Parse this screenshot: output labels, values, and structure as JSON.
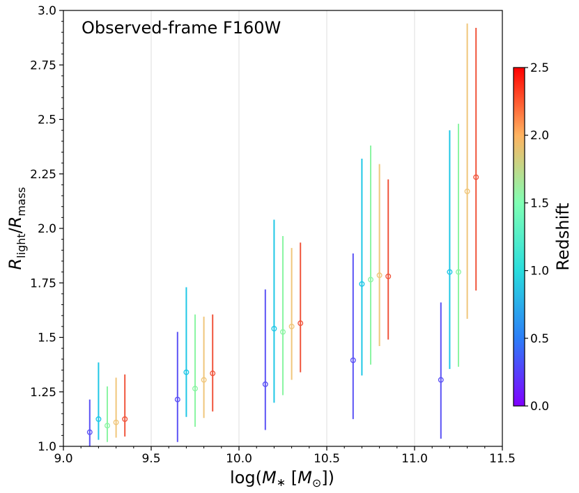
{
  "chart_data": {
    "type": "scatter",
    "title": "",
    "annotation": "Observed-frame F160W",
    "xlabel": "log(M* [M⊙])",
    "ylabel": "R_light/R_mass",
    "xlim": [
      9.0,
      11.5
    ],
    "ylim": [
      1.0,
      3.0
    ],
    "xticks": [
      "9.0",
      "9.5",
      "10.0",
      "10.5",
      "11.0",
      "11.5"
    ],
    "yticks": [
      "1.0",
      "1.25",
      "1.5",
      "1.75",
      "2.0",
      "2.25",
      "2.5",
      "2.75",
      "3.0"
    ],
    "grid": "vertical",
    "colorbar": {
      "label": "Redshift",
      "range": [
        0.0,
        2.5
      ],
      "ticks": [
        "0.0",
        "0.5",
        "1.0",
        "1.5",
        "2.0",
        "2.5"
      ],
      "colormap": "rainbow"
    },
    "points": [
      {
        "x": 9.15,
        "y": 1.065,
        "ylo": 1.0,
        "yhi": 1.215,
        "color": "#5b52f5"
      },
      {
        "x": 9.2,
        "y": 1.125,
        "ylo": 1.03,
        "yhi": 1.385,
        "color": "#1fc7e6"
      },
      {
        "x": 9.25,
        "y": 1.095,
        "ylo": 1.02,
        "yhi": 1.275,
        "color": "#8bf5a3"
      },
      {
        "x": 9.3,
        "y": 1.11,
        "ylo": 1.04,
        "yhi": 1.315,
        "color": "#f0c67a"
      },
      {
        "x": 9.35,
        "y": 1.125,
        "ylo": 1.045,
        "yhi": 1.33,
        "color": "#f0553c"
      },
      {
        "x": 9.65,
        "y": 1.215,
        "ylo": 1.02,
        "yhi": 1.525,
        "color": "#5b52f5"
      },
      {
        "x": 9.7,
        "y": 1.34,
        "ylo": 1.135,
        "yhi": 1.73,
        "color": "#1fc7e6"
      },
      {
        "x": 9.75,
        "y": 1.265,
        "ylo": 1.09,
        "yhi": 1.605,
        "color": "#8bf5a3"
      },
      {
        "x": 9.8,
        "y": 1.305,
        "ylo": 1.13,
        "yhi": 1.595,
        "color": "#f0c67a"
      },
      {
        "x": 9.85,
        "y": 1.335,
        "ylo": 1.16,
        "yhi": 1.605,
        "color": "#f0553c"
      },
      {
        "x": 10.15,
        "y": 1.285,
        "ylo": 1.075,
        "yhi": 1.72,
        "color": "#5b52f5"
      },
      {
        "x": 10.2,
        "y": 1.54,
        "ylo": 1.2,
        "yhi": 2.04,
        "color": "#1fc7e6"
      },
      {
        "x": 10.25,
        "y": 1.525,
        "ylo": 1.235,
        "yhi": 1.965,
        "color": "#8bf5a3"
      },
      {
        "x": 10.3,
        "y": 1.55,
        "ylo": 1.305,
        "yhi": 1.91,
        "color": "#f0c67a"
      },
      {
        "x": 10.35,
        "y": 1.565,
        "ylo": 1.34,
        "yhi": 1.935,
        "color": "#f0553c"
      },
      {
        "x": 10.65,
        "y": 1.395,
        "ylo": 1.125,
        "yhi": 1.885,
        "color": "#5b52f5"
      },
      {
        "x": 10.7,
        "y": 1.745,
        "ylo": 1.325,
        "yhi": 2.32,
        "color": "#1fc7e6"
      },
      {
        "x": 10.75,
        "y": 1.765,
        "ylo": 1.375,
        "yhi": 2.38,
        "color": "#8bf5a3"
      },
      {
        "x": 10.8,
        "y": 1.785,
        "ylo": 1.46,
        "yhi": 2.295,
        "color": "#f0c67a"
      },
      {
        "x": 10.85,
        "y": 1.78,
        "ylo": 1.49,
        "yhi": 2.225,
        "color": "#f0553c"
      },
      {
        "x": 11.15,
        "y": 1.305,
        "ylo": 1.035,
        "yhi": 1.66,
        "color": "#5b52f5"
      },
      {
        "x": 11.2,
        "y": 1.8,
        "ylo": 1.355,
        "yhi": 2.45,
        "color": "#1fc7e6"
      },
      {
        "x": 11.25,
        "y": 1.8,
        "ylo": 1.365,
        "yhi": 2.48,
        "color": "#8bf5a3"
      },
      {
        "x": 11.3,
        "y": 2.17,
        "ylo": 1.585,
        "yhi": 2.94,
        "color": "#f0c67a"
      },
      {
        "x": 11.35,
        "y": 2.235,
        "ylo": 1.715,
        "yhi": 2.92,
        "color": "#f0553c"
      }
    ]
  }
}
